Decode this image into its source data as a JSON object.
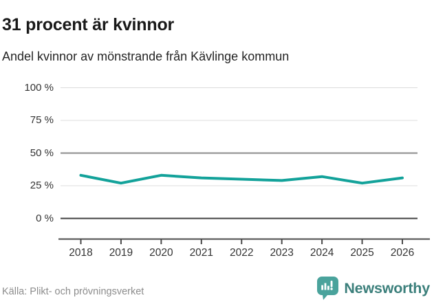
{
  "header": {
    "title": "31 procent är kvinnor",
    "subtitle": "Andel kvinnor av mönstrande från Kävlinge kommun"
  },
  "footer": {
    "source": "Källa: Plikt- och prövningsverket",
    "brand": "Newsworthy"
  },
  "colors": {
    "line": "#13a29a",
    "grid_light": "#dcdcdc",
    "grid_reference": "#8a8a8a",
    "grid_zero": "#3f3f3f",
    "axis": "#4a4a4a",
    "tick_label": "#333333",
    "brand_icon": "#4aa39c",
    "brand_text": "#3b7f7b"
  },
  "chart_data": {
    "type": "line",
    "title": "31 procent är kvinnor",
    "subtitle": "Andel kvinnor av mönstrande från Kävlinge kommun",
    "categories": [
      "2018",
      "2019",
      "2020",
      "2021",
      "2022",
      "2023",
      "2024",
      "2025",
      "2026"
    ],
    "series": [
      {
        "name": "Andel kvinnor av mönstrande",
        "values": [
          33,
          27,
          33,
          31,
          30,
          29,
          32,
          27,
          31
        ]
      }
    ],
    "unit": "%",
    "ylim": [
      0,
      100
    ],
    "yticks": [
      {
        "value": 0,
        "label": "0 %"
      },
      {
        "value": 25,
        "label": "25 %"
      },
      {
        "value": 50,
        "label": "50 %"
      },
      {
        "value": 75,
        "label": "75 %"
      },
      {
        "value": 100,
        "label": "100 %"
      }
    ],
    "reference_value": 50,
    "grid": "horizontal",
    "legend_position": "none",
    "latest_value_pct": 31
  }
}
